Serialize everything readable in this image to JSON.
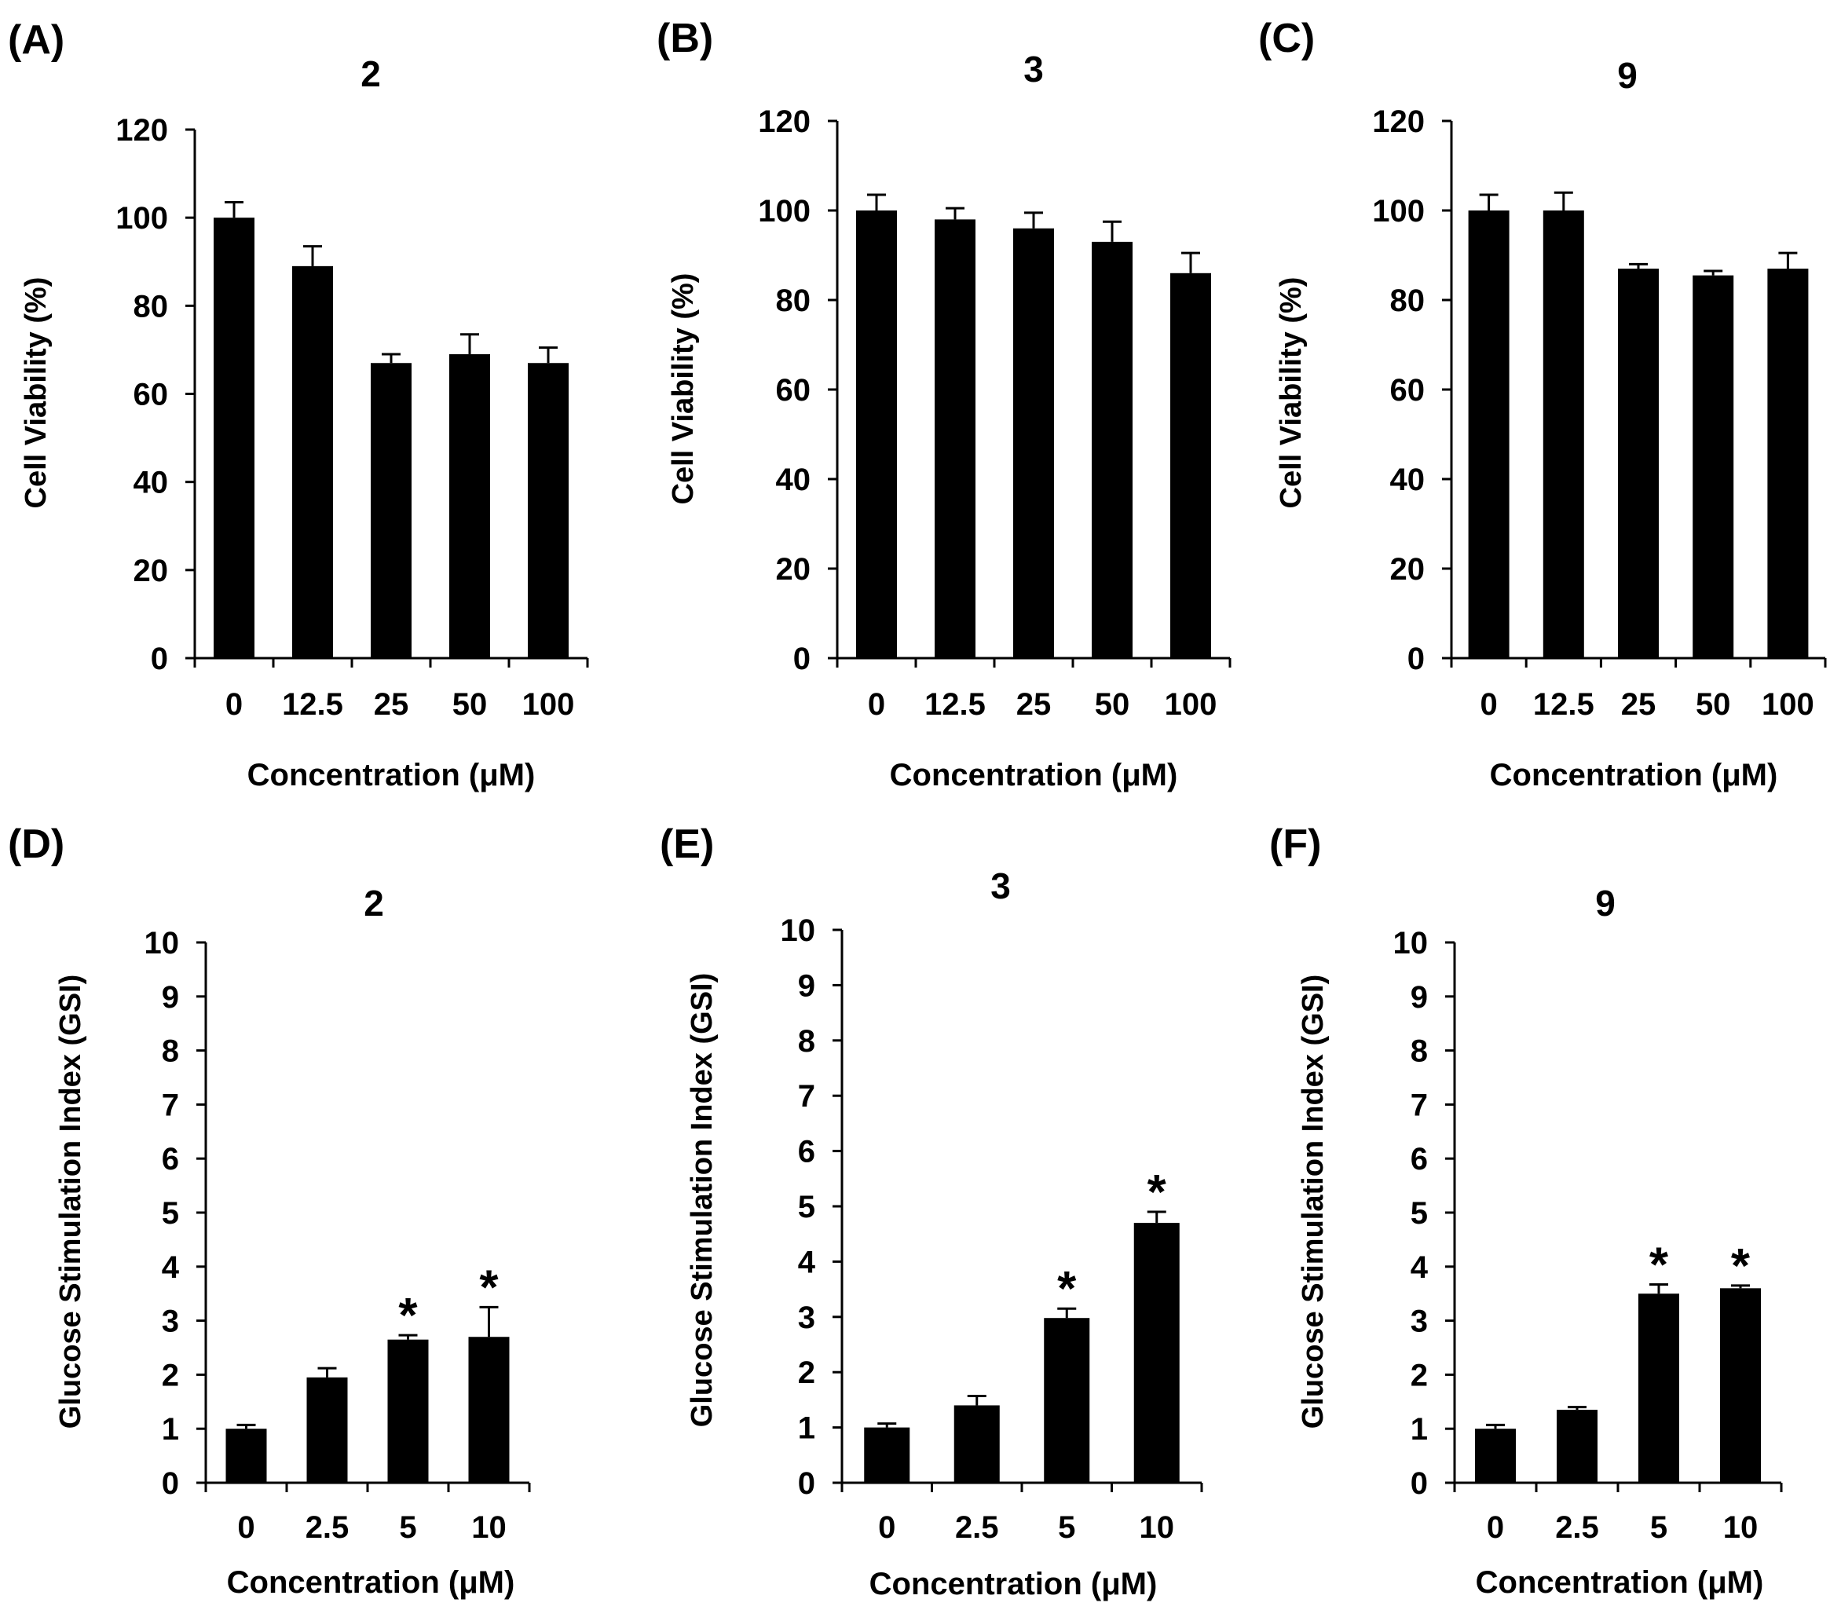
{
  "figure": {
    "bar_color": "#000000",
    "axis_color": "#000000",
    "background": "#ffffff"
  },
  "chart_data": [
    {
      "type": "bar",
      "panel_label": "(A)",
      "title": "2",
      "xlabel": "Concentration (μM)",
      "ylabel": "Cell Viability  (%)",
      "categories": [
        "0",
        "12.5",
        "25",
        "50",
        "100"
      ],
      "values": [
        100,
        89,
        67,
        69,
        67
      ],
      "errors": [
        3.5,
        4.5,
        2,
        4.5,
        3.5
      ],
      "ylim": [
        0,
        120
      ],
      "yticks": [
        0,
        20,
        40,
        60,
        80,
        100,
        120
      ],
      "annotations": [
        "",
        "",
        "",
        "",
        ""
      ]
    },
    {
      "type": "bar",
      "panel_label": "(B)",
      "title": "3",
      "xlabel": "Concentration (μM)",
      "ylabel": "Cell Viability  (%)",
      "categories": [
        "0",
        "12.5",
        "25",
        "50",
        "100"
      ],
      "values": [
        100,
        98,
        96,
        93,
        86
      ],
      "errors": [
        3.5,
        2.5,
        3.5,
        4.5,
        4.5
      ],
      "ylim": [
        0,
        120
      ],
      "yticks": [
        0,
        20,
        40,
        60,
        80,
        100,
        120
      ],
      "annotations": [
        "",
        "",
        "",
        "",
        ""
      ]
    },
    {
      "type": "bar",
      "panel_label": "(C)",
      "title": "9",
      "xlabel": "Concentration (μM)",
      "ylabel": "Cell Viability  (%)",
      "categories": [
        "0",
        "12.5",
        "25",
        "50",
        "100"
      ],
      "values": [
        100,
        100,
        87,
        85.5,
        87
      ],
      "errors": [
        3.5,
        4,
        1,
        1,
        3.5
      ],
      "ylim": [
        0,
        120
      ],
      "yticks": [
        0,
        20,
        40,
        60,
        80,
        100,
        120
      ],
      "annotations": [
        "",
        "",
        "",
        "",
        ""
      ]
    },
    {
      "type": "bar",
      "panel_label": "(D)",
      "title": "2",
      "xlabel": "Concentration (μM)",
      "ylabel": "Glucose Stimulation Index (GSI)",
      "categories": [
        "0",
        "2.5",
        "5",
        "10"
      ],
      "values": [
        1.0,
        1.95,
        2.65,
        2.7
      ],
      "errors": [
        0.07,
        0.17,
        0.08,
        0.55
      ],
      "ylim": [
        0,
        10
      ],
      "yticks": [
        0,
        1,
        2,
        3,
        4,
        5,
        6,
        7,
        8,
        9,
        10
      ],
      "annotations": [
        "",
        "",
        "*",
        "*"
      ]
    },
    {
      "type": "bar",
      "panel_label": "(E)",
      "title": "3",
      "xlabel": "Concentration (μM)",
      "ylabel": "Glucose Stimulation Index (GSI)",
      "categories": [
        "0",
        "2.5",
        "5",
        "10"
      ],
      "values": [
        1.0,
        1.4,
        2.98,
        4.7
      ],
      "errors": [
        0.07,
        0.17,
        0.17,
        0.2
      ],
      "ylim": [
        0,
        10
      ],
      "yticks": [
        0,
        1,
        2,
        3,
        4,
        5,
        6,
        7,
        8,
        9,
        10
      ],
      "annotations": [
        "",
        "",
        "*",
        "*"
      ]
    },
    {
      "type": "bar",
      "panel_label": "(F)",
      "title": "9",
      "xlabel": "Concentration (μM)",
      "ylabel": "Glucose Stimulation Index (GSI)",
      "categories": [
        "0",
        "2.5",
        "5",
        "10"
      ],
      "values": [
        1.0,
        1.35,
        3.5,
        3.6
      ],
      "errors": [
        0.07,
        0.05,
        0.17,
        0.05
      ],
      "ylim": [
        0,
        10
      ],
      "yticks": [
        0,
        1,
        2,
        3,
        4,
        5,
        6,
        7,
        8,
        9,
        10
      ],
      "annotations": [
        "",
        "",
        "*",
        "*"
      ]
    }
  ]
}
